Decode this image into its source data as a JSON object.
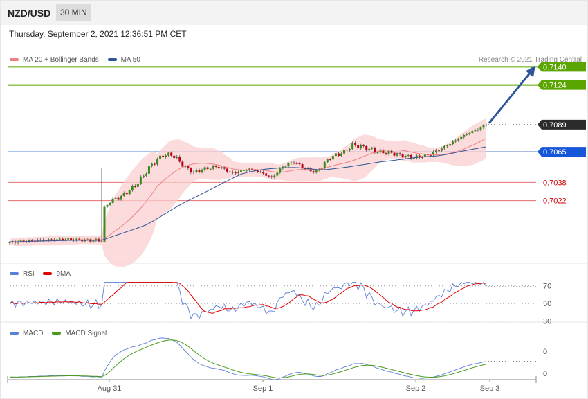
{
  "header": {
    "pair": "NZD/USD",
    "timeframe": "30 MIN"
  },
  "datetime": "Thursday, September 2, 2021 12:36:51 PM CET",
  "credit": "Research © 2021 Trading Central",
  "legends": {
    "price": [
      {
        "label": "MA 20 + Bollinger Bands",
        "color": "#f08080"
      },
      {
        "label": "MA 50",
        "color": "#2e5597"
      }
    ],
    "rsi": [
      {
        "label": "RSI",
        "color": "#5b7fd6"
      },
      {
        "label": "9MA",
        "color": "#e00000"
      }
    ],
    "macd": [
      {
        "label": "MACD",
        "color": "#5b7fd6"
      },
      {
        "label": "MACD Signal",
        "color": "#4a9a1a"
      }
    ]
  },
  "colors": {
    "up": "#3c8a1a",
    "down": "#c0001a",
    "resistance": "#5aa500",
    "pivot": "#1656d8",
    "support": "#e04a4a",
    "last": "#2b2b2b",
    "arrow": "#2e5597"
  },
  "chart_data": [
    {
      "type": "candlestick",
      "title": "NZD/USD 30 MIN",
      "x_ticks": [
        "Aug 31",
        "Sep 1",
        "Sep 2",
        "Sep 3"
      ],
      "ylim": [
        0.6968,
        0.715
      ],
      "last_price": "0.7089",
      "levels": [
        {
          "value": "0.7140",
          "kind": "resistance"
        },
        {
          "value": "0.7124",
          "kind": "resistance"
        },
        {
          "value": "0.7065",
          "kind": "pivot"
        },
        {
          "value": "0.7038",
          "kind": "support"
        },
        {
          "value": "0.7022",
          "kind": "support"
        }
      ],
      "projection": {
        "from": 0.7089,
        "to": 0.714
      },
      "ohlc_keyframes": [
        [
          0,
          0.69855
        ],
        [
          10,
          0.6987
        ],
        [
          20,
          0.6988
        ],
        [
          28,
          0.6987
        ],
        [
          33,
          0.69868
        ],
        [
          34,
          0.7015
        ],
        [
          36,
          0.70215
        ],
        [
          40,
          0.70255
        ],
        [
          45,
          0.7035
        ],
        [
          48,
          0.7044
        ],
        [
          50,
          0.7051
        ],
        [
          52,
          0.7056
        ],
        [
          55,
          0.7062
        ],
        [
          58,
          0.70625
        ],
        [
          60,
          0.7059
        ],
        [
          63,
          0.7051
        ],
        [
          66,
          0.7047
        ],
        [
          70,
          0.705
        ],
        [
          75,
          0.7052
        ],
        [
          80,
          0.7046
        ],
        [
          86,
          0.705
        ],
        [
          90,
          0.7047
        ],
        [
          94,
          0.7042
        ],
        [
          98,
          0.7052
        ],
        [
          102,
          0.7056
        ],
        [
          106,
          0.705
        ],
        [
          110,
          0.7047
        ],
        [
          115,
          0.706
        ],
        [
          120,
          0.7065
        ],
        [
          123,
          0.7071
        ],
        [
          127,
          0.7069
        ],
        [
          132,
          0.7065
        ],
        [
          137,
          0.7064
        ],
        [
          140,
          0.7062
        ],
        [
          145,
          0.706
        ],
        [
          150,
          0.7062
        ],
        [
          155,
          0.7068
        ],
        [
          160,
          0.7075
        ],
        [
          164,
          0.7081
        ],
        [
          168,
          0.7085
        ],
        [
          171,
          0.7089
        ]
      ]
    },
    {
      "type": "line",
      "title": "RSI",
      "series": [
        {
          "name": "RSI"
        },
        {
          "name": "9MA"
        }
      ],
      "y_ticks": [
        "70",
        "50",
        "30"
      ],
      "ylim": [
        25,
        80
      ],
      "current": 69
    },
    {
      "type": "line",
      "title": "MACD",
      "series": [
        {
          "name": "MACD"
        },
        {
          "name": "MACD Signal"
        }
      ],
      "y_ticks": [
        "0",
        "0"
      ],
      "current": 0.0003
    }
  ]
}
